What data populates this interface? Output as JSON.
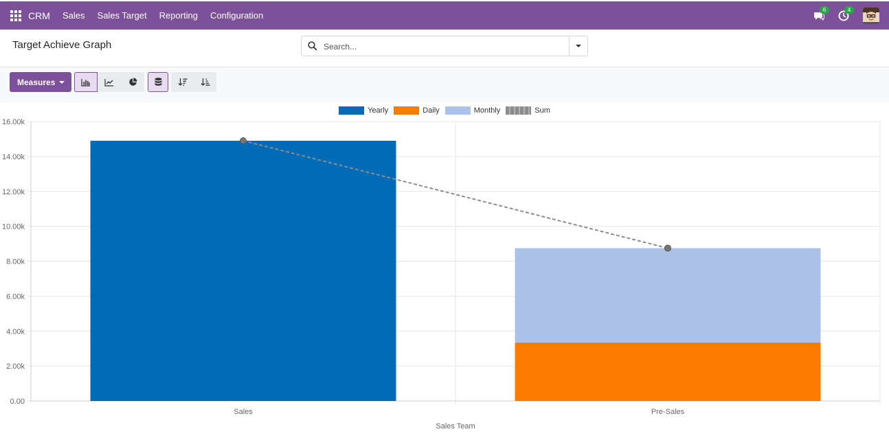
{
  "navbar": {
    "brand": "CRM",
    "menu": [
      "Sales",
      "Sales Target",
      "Reporting",
      "Configuration"
    ],
    "messages_count": "6",
    "activities_count": "4"
  },
  "control_panel": {
    "title": "Target Achieve Graph",
    "search_placeholder": "Search...",
    "measures_label": "Measures"
  },
  "chart_data": {
    "type": "bar",
    "stacked": true,
    "categories": [
      "Sales",
      "Pre-Sales"
    ],
    "series": [
      {
        "name": "Yearly",
        "color": "#006bb6",
        "values": [
          14900,
          0
        ]
      },
      {
        "name": "Daily",
        "color": "#ff7b00",
        "values": [
          0,
          3350
        ]
      },
      {
        "name": "Monthly",
        "color": "#adc2e8",
        "values": [
          0,
          5400
        ]
      }
    ],
    "line": {
      "name": "Sum",
      "values": [
        14900,
        8750
      ],
      "color": "#8c8c8c"
    },
    "xlabel": "Sales Team",
    "ylabel": "",
    "ylim": [
      0,
      16000
    ],
    "yticks": [
      "0.00",
      "2.00k",
      "4.00k",
      "6.00k",
      "8.00k",
      "10.00k",
      "12.00k",
      "14.00k",
      "16.00k"
    ],
    "legend_position": "top",
    "grid": true
  }
}
